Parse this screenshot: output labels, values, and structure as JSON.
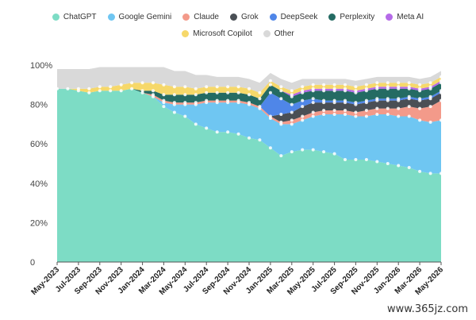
{
  "chart_data": {
    "type": "area",
    "stacked": true,
    "x": [
      "May-2023",
      "Jun-2023",
      "Jul-2023",
      "Aug-2023",
      "Sep-2023",
      "Oct-2023",
      "Nov-2023",
      "Dec-2023",
      "Jan-2024",
      "Feb-2024",
      "Mar-2024",
      "Apr-2024",
      "May-2024",
      "Jun-2024",
      "Jul-2024",
      "Aug-2024",
      "Sep-2024",
      "Oct-2024",
      "Nov-2024",
      "Dec-2024",
      "Jan-2025",
      "Feb-2025",
      "Mar-2025",
      "Apr-2025",
      "May-2025",
      "Jun-2025",
      "Jul-2025",
      "Aug-2025",
      "Sep-2025",
      "Oct-2025",
      "Nov-2025",
      "Dec-2025",
      "Jan-2026",
      "Feb-2026",
      "Mar-2026",
      "Apr-2026",
      "May-2026"
    ],
    "x_tick_labels": [
      "May-2023",
      "Jul-2023",
      "Sep-2023",
      "Nov-2023",
      "Jan-2024",
      "Mar-2024",
      "May-2024",
      "Jul-2024",
      "Sep-2024",
      "Nov-2024",
      "Jan-2025",
      "Mar-2025",
      "May-2025",
      "Jul-2025",
      "Sep-2025",
      "Nov-2025",
      "Jan-2026",
      "Mar-2026",
      "May-2026"
    ],
    "y_tick_labels": [
      "0",
      "20%",
      "40%",
      "60%",
      "80%",
      "100%"
    ],
    "ylim": [
      0,
      100
    ],
    "legend_position": "top",
    "series": [
      {
        "name": "ChatGPT",
        "color": "#7ddcc5",
        "values": [
          88,
          88,
          87,
          86,
          87,
          87,
          87,
          88,
          86,
          84,
          79,
          76,
          74,
          70,
          68,
          66,
          66,
          65,
          63,
          62,
          58,
          54,
          56,
          57,
          57,
          56,
          55,
          52,
          52,
          52,
          51,
          50,
          49,
          48,
          46,
          45,
          45
        ]
      },
      {
        "name": "Google Gemini",
        "color": "#6fc6f2",
        "values": [
          0,
          0,
          0,
          0,
          0,
          0,
          0,
          0,
          0,
          0,
          2,
          4,
          6,
          10,
          13,
          15,
          15,
          16,
          17,
          16,
          15,
          16,
          14,
          15,
          17,
          19,
          20,
          23,
          22,
          22,
          24,
          25,
          25,
          26,
          26,
          26,
          27
        ]
      },
      {
        "name": "Claude",
        "color": "#f39a8a",
        "values": [
          0,
          0,
          0,
          0,
          0,
          0,
          0,
          0,
          0,
          1,
          1,
          1,
          1,
          1,
          1,
          1,
          1,
          1,
          1,
          1,
          1,
          1,
          2,
          2,
          2,
          2,
          2,
          2,
          2,
          3,
          3,
          3,
          4,
          5,
          6,
          8,
          10
        ]
      },
      {
        "name": "Grok",
        "color": "#4a4f55",
        "values": [
          0,
          0,
          0,
          0,
          0,
          0,
          0,
          0,
          0,
          0,
          0,
          0,
          0,
          0,
          0,
          0,
          0,
          0,
          0,
          0,
          0,
          4,
          4,
          5,
          5,
          4,
          4,
          4,
          4,
          4,
          4,
          4,
          4,
          4,
          4,
          4,
          4
        ]
      },
      {
        "name": "DeepSeek",
        "color": "#4f86e8",
        "values": [
          0,
          0,
          0,
          0,
          0,
          0,
          0,
          0,
          0,
          0,
          0,
          0,
          0,
          0,
          0,
          0,
          0,
          0,
          0,
          0,
          12,
          8,
          4,
          3,
          2,
          1,
          1,
          1,
          1,
          1,
          1,
          1,
          1,
          1,
          1,
          1,
          1
        ]
      },
      {
        "name": "Perplexity",
        "color": "#246b63",
        "values": [
          0,
          0,
          0,
          0,
          0,
          0,
          0,
          0,
          1,
          2,
          3,
          4,
          4,
          4,
          4,
          4,
          4,
          4,
          4,
          4,
          4,
          4,
          4,
          4,
          4,
          5,
          5,
          5,
          5,
          5,
          5,
          5,
          5,
          4,
          4,
          4,
          4
        ]
      },
      {
        "name": "Meta AI",
        "color": "#b56ae8",
        "values": [
          0,
          0,
          0,
          0,
          0,
          0,
          0,
          0,
          0,
          0,
          0,
          0,
          0,
          0,
          0,
          0,
          0,
          0,
          0,
          0,
          0,
          0,
          1,
          1,
          1,
          1,
          1,
          1,
          1,
          1,
          1,
          1,
          1,
          1,
          1,
          1,
          1
        ]
      },
      {
        "name": "Microsoft Copilot",
        "color": "#f6d86a",
        "values": [
          0,
          0,
          1,
          2,
          2,
          2,
          3,
          3,
          4,
          4,
          5,
          4,
          4,
          3,
          3,
          3,
          3,
          3,
          3,
          3,
          2,
          2,
          2,
          2,
          2,
          2,
          2,
          2,
          2,
          2,
          2,
          2,
          2,
          2,
          2,
          2,
          2
        ]
      },
      {
        "name": "Other",
        "color": "#d9d9d9",
        "values": [
          10,
          10,
          10,
          10,
          10,
          10,
          9,
          8,
          8,
          8,
          9,
          8,
          8,
          7,
          6,
          5,
          5,
          5,
          5,
          5,
          4,
          4,
          4,
          4,
          3,
          3,
          3,
          3,
          3,
          3,
          3,
          3,
          3,
          3,
          3,
          3,
          3
        ]
      }
    ]
  },
  "watermark": "www.365jz.com"
}
